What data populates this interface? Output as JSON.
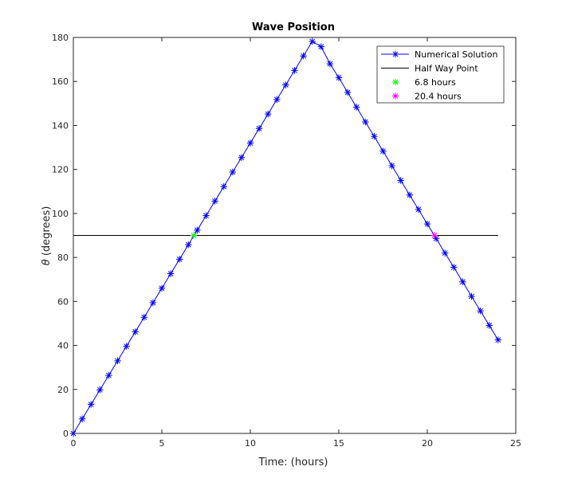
{
  "chart_data": {
    "type": "line",
    "title": "Wave Position",
    "xlabel": "Time: (hours)",
    "ylabel_symbol": "θ",
    "ylabel_text": " (degrees)",
    "xlim": [
      0,
      25
    ],
    "ylim": [
      0,
      180
    ],
    "xticks": [
      0,
      5,
      10,
      15,
      20,
      25
    ],
    "yticks": [
      0,
      20,
      40,
      60,
      80,
      100,
      120,
      140,
      160,
      180
    ],
    "grid": false,
    "legend_position": "top-right",
    "series": [
      {
        "name": "Numerical Solution",
        "style": "line-star",
        "color": "#0000ff",
        "x": [
          0,
          0.5,
          1,
          1.5,
          2,
          2.5,
          3,
          3.5,
          4,
          4.5,
          5,
          5.5,
          6,
          6.5,
          7,
          7.5,
          8,
          8.5,
          9,
          9.5,
          10,
          10.5,
          11,
          11.5,
          12,
          12.5,
          13,
          13.5,
          14,
          14.5,
          15,
          15.5,
          16,
          16.5,
          17,
          17.5,
          18,
          18.5,
          19,
          19.5,
          20,
          20.5,
          21,
          21.5,
          22,
          22.5,
          23,
          23.5,
          24
        ],
        "y": [
          0,
          6.6,
          13.2,
          19.8,
          26.4,
          33.0,
          39.6,
          46.2,
          52.8,
          59.4,
          66.0,
          72.6,
          79.2,
          85.8,
          92.4,
          99.0,
          105.6,
          112.2,
          118.8,
          125.4,
          132.0,
          138.6,
          145.2,
          151.8,
          158.4,
          165.0,
          171.6,
          178.2,
          175.8,
          168.0,
          161.7,
          155.0,
          148.3,
          141.6,
          135.0,
          128.3,
          121.7,
          115.0,
          108.4,
          101.8,
          95.2,
          88.6,
          82.0,
          75.5,
          68.9,
          62.3,
          55.7,
          49.1,
          42.5
        ]
      },
      {
        "name": "Half Way Point",
        "style": "line",
        "color": "#000000",
        "x": [
          0,
          24
        ],
        "y": [
          90,
          90
        ]
      },
      {
        "name": "6.8 hours",
        "style": "star",
        "color": "#00ff00",
        "x": [
          6.8
        ],
        "y": [
          90
        ]
      },
      {
        "name": "20.4 hours",
        "style": "star",
        "color": "#ff00ff",
        "x": [
          20.4
        ],
        "y": [
          90
        ]
      }
    ]
  }
}
